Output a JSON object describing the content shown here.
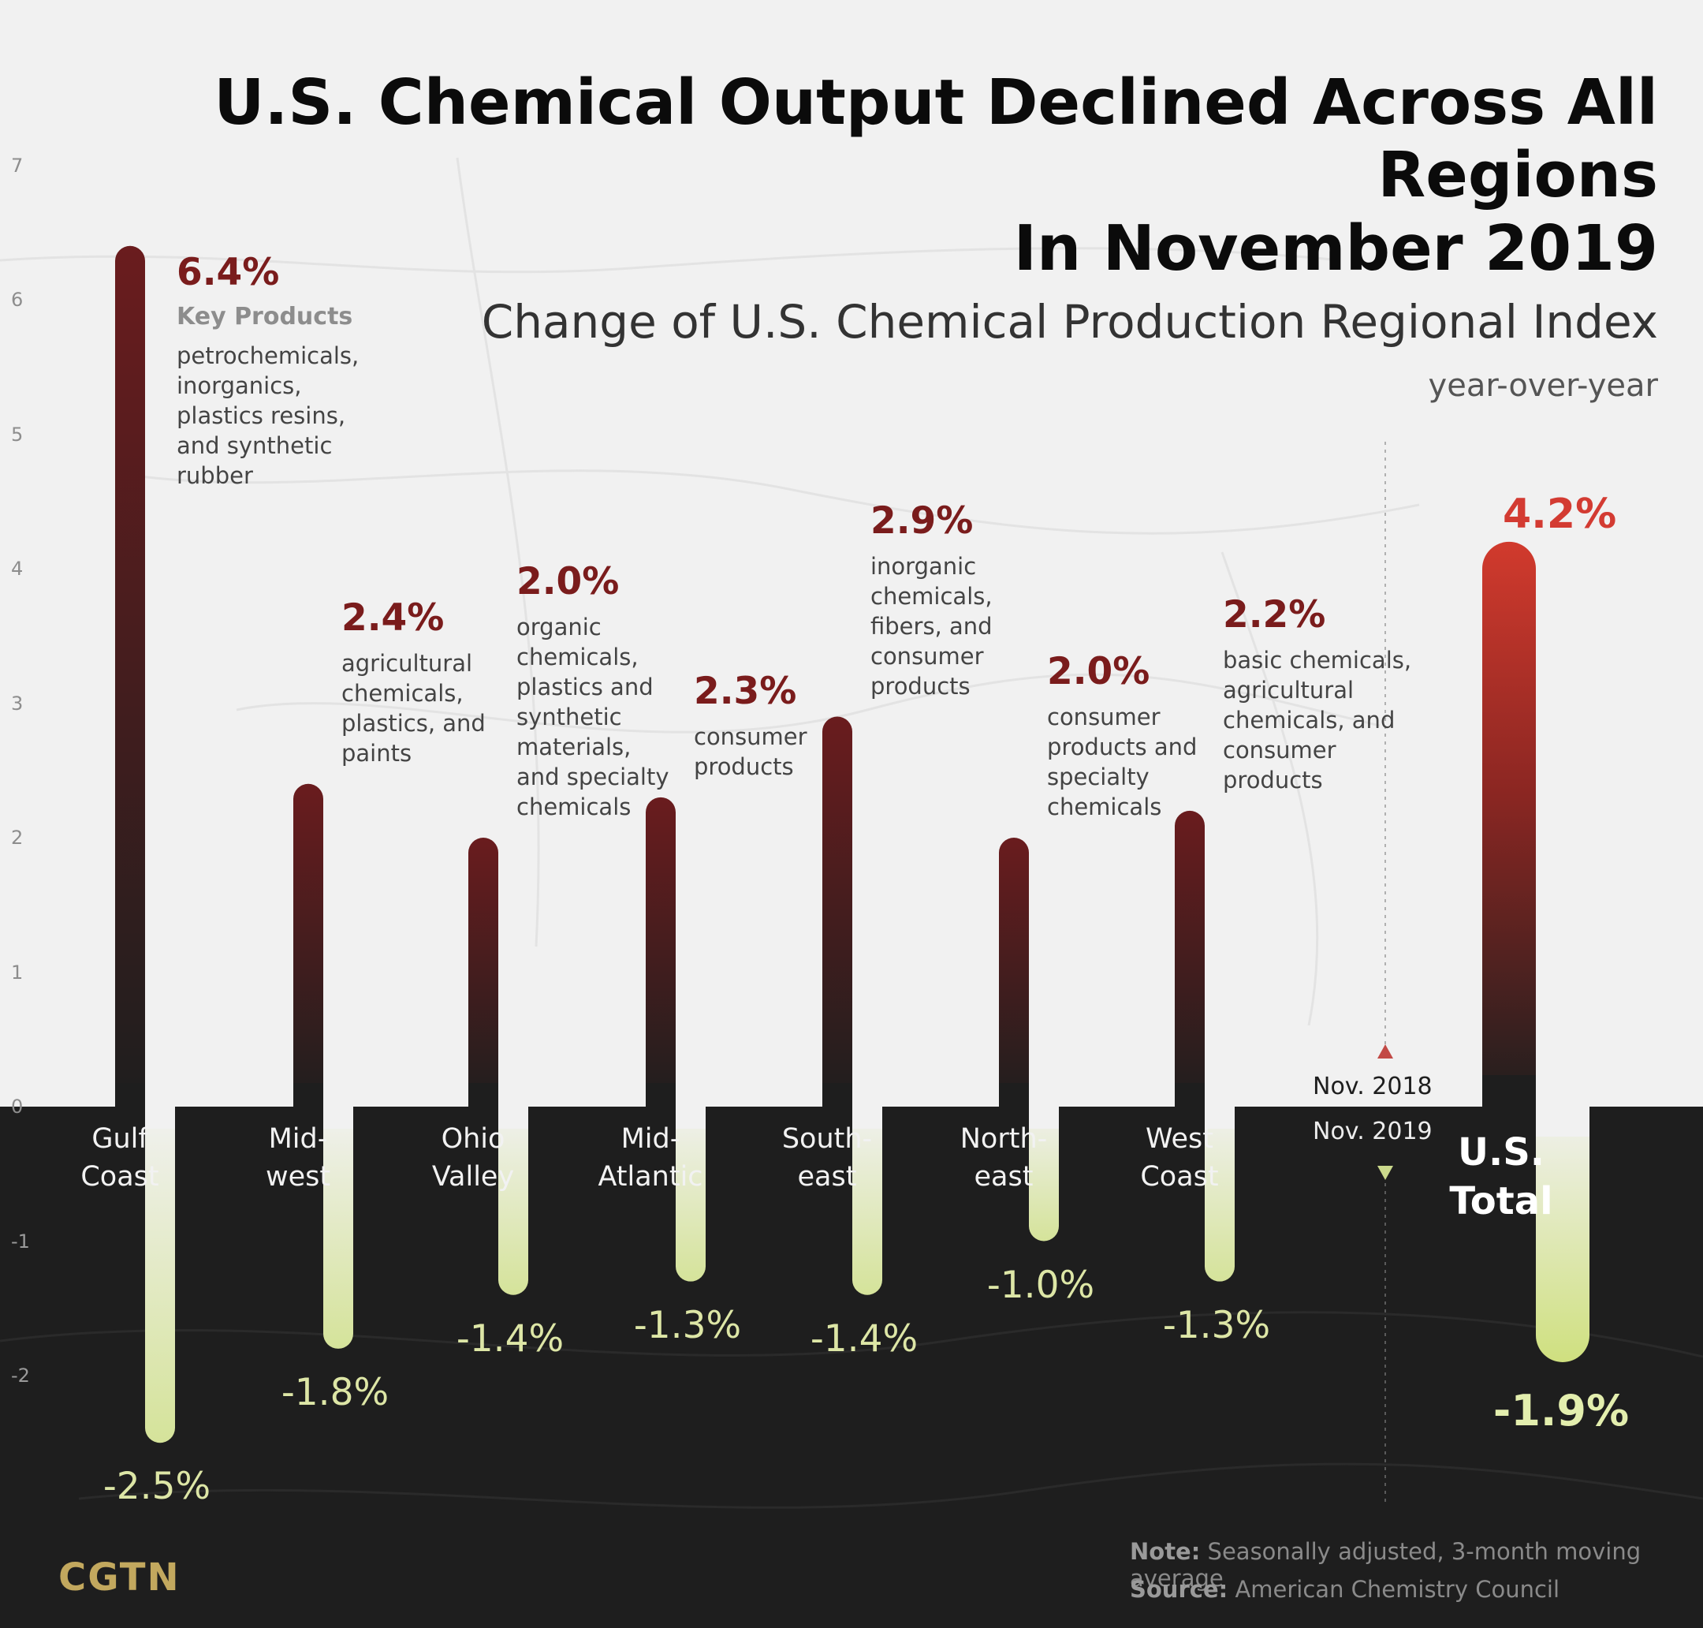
{
  "title_line1": "U.S. Chemical Output Declined Across All Regions",
  "title_line2": "In November 2019",
  "subtitle": "Change of U.S. Chemical Production Regional Index",
  "unit_label": "year-over-year",
  "key_products_heading": "Key Products",
  "legend": {
    "upper": "Nov. 2018",
    "lower": "Nov. 2019"
  },
  "note_label": "Note:",
  "note_text": "Seasonally adjusted, 3-month moving average",
  "source_label": "Source:",
  "source_text": "American Chemistry Council",
  "logo": "CGTN",
  "colors": {
    "positive_label": "#7a1c1c",
    "total_positive": "#d33b32",
    "negative_label": "#dde6a6",
    "dark_band": "#1e1e1e"
  },
  "chart_data": {
    "type": "bar",
    "ylim": [
      -2.5,
      7
    ],
    "yticks": [
      "7",
      "6",
      "5",
      "4",
      "3",
      "2",
      "1",
      "0",
      "-1",
      "-2"
    ],
    "series": [
      {
        "name": "Nov. 2018",
        "values": [
          6.4,
          2.4,
          2.0,
          2.3,
          2.9,
          2.0,
          2.2,
          4.2
        ]
      },
      {
        "name": "Nov. 2019",
        "values": [
          -2.5,
          -1.8,
          -1.4,
          -1.3,
          -1.4,
          -1.0,
          -1.3,
          -1.9
        ]
      }
    ],
    "regions": [
      {
        "line1": "Gulf",
        "line2": "Coast",
        "pos_label": "6.4%",
        "neg_label": "-2.5%",
        "products": [
          "petrochemicals,",
          "inorganics,",
          "plastics resins,",
          "and synthetic",
          "rubber"
        ]
      },
      {
        "line1": "Mid-",
        "line2": "west",
        "pos_label": "2.4%",
        "neg_label": "-1.8%",
        "products": [
          "agricultural",
          "chemicals,",
          "plastics, and",
          "paints"
        ]
      },
      {
        "line1": "Ohio",
        "line2": "Valley",
        "pos_label": "2.0%",
        "neg_label": "-1.4%",
        "products": [
          "organic",
          "chemicals,",
          "plastics and",
          "synthetic",
          "materials,",
          "and specialty",
          "chemicals"
        ]
      },
      {
        "line1": "Mid-",
        "line2": "Atlantic",
        "pos_label": "2.3%",
        "neg_label": "-1.3%",
        "products": [
          "consumer",
          "products"
        ]
      },
      {
        "line1": "South-",
        "line2": "east",
        "pos_label": "2.9%",
        "neg_label": "-1.4%",
        "products": [
          "inorganic",
          "chemicals,",
          "fibers, and",
          "consumer",
          "products"
        ]
      },
      {
        "line1": "North-",
        "line2": "east",
        "pos_label": "2.0%",
        "neg_label": "-1.0%",
        "products": [
          "consumer",
          "products and",
          "specialty",
          "chemicals"
        ]
      },
      {
        "line1": "West",
        "line2": "Coast",
        "pos_label": "2.2%",
        "neg_label": "-1.3%",
        "products": [
          "basic chemicals,",
          "agricultural",
          "chemicals, and",
          "consumer",
          "products"
        ]
      },
      {
        "line1": "U.S.",
        "line2": "Total",
        "pos_label": "4.2%",
        "neg_label": "-1.9%",
        "products": []
      }
    ]
  }
}
